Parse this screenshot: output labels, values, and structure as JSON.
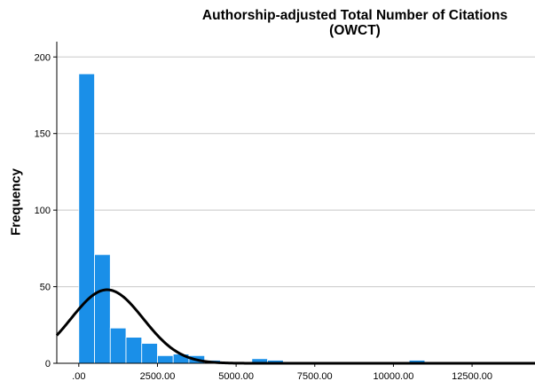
{
  "chart_data": {
    "type": "bar",
    "title": "Authorship-adjusted Total Number of Citations",
    "title_line2": "(OWCT)",
    "xlabel": "",
    "ylabel": "Frequency",
    "xlim": [
      -700,
      14500
    ],
    "ylim": [
      0,
      210
    ],
    "grid": "horizontal",
    "bar_color": "#1a8fe8",
    "curve_color": "#000000",
    "y_ticks": [
      0,
      50,
      100,
      150,
      200
    ],
    "x_ticks": [
      {
        "value": 0,
        "label": ".00"
      },
      {
        "value": 2500,
        "label": "2500.00"
      },
      {
        "value": 5000,
        "label": "5000.00"
      },
      {
        "value": 7500,
        "label": "7500.00"
      },
      {
        "value": 10000,
        "label": "10000.00"
      },
      {
        "value": 12500,
        "label": "12500.00"
      }
    ],
    "bin_width": 500,
    "bins": [
      {
        "start": 0,
        "count": 189
      },
      {
        "start": 500,
        "count": 71
      },
      {
        "start": 1000,
        "count": 23
      },
      {
        "start": 1500,
        "count": 17
      },
      {
        "start": 2000,
        "count": 13
      },
      {
        "start": 2500,
        "count": 5
      },
      {
        "start": 3000,
        "count": 6
      },
      {
        "start": 3500,
        "count": 5
      },
      {
        "start": 4000,
        "count": 2
      },
      {
        "start": 4500,
        "count": 1
      },
      {
        "start": 5000,
        "count": 1
      },
      {
        "start": 5500,
        "count": 3
      },
      {
        "start": 6000,
        "count": 2
      },
      {
        "start": 10500,
        "count": 2
      },
      {
        "start": 12500,
        "count": 1
      }
    ],
    "normal_curve": {
      "mean": 900,
      "sd": 1150,
      "peak": 48
    }
  }
}
